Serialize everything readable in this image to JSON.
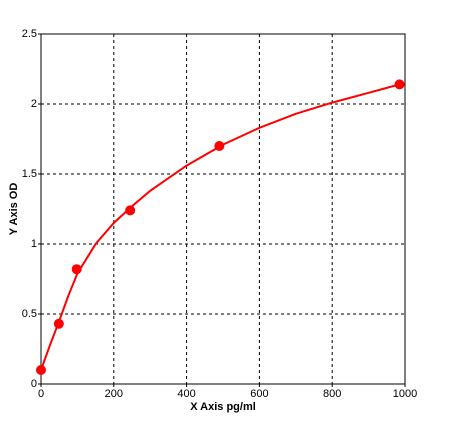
{
  "chart_data": {
    "type": "scatter",
    "x_label": "X Axis pg/ml",
    "y_label": "Y Axis OD",
    "xlim": [
      0,
      1000
    ],
    "xticks": [
      0,
      200,
      400,
      600,
      800,
      1000
    ],
    "ylim": [
      0,
      2.5
    ],
    "yticks": [
      0,
      0.5,
      1,
      1.5,
      2,
      2.5
    ],
    "grid": true,
    "series": [
      {
        "type": "line",
        "color": "#ff0000",
        "x": [
          0,
          25,
          50,
          75,
          100,
          150,
          200,
          250,
          300,
          400,
          500,
          600,
          700,
          800,
          900,
          985
        ],
        "values": [
          0.1,
          0.28,
          0.45,
          0.63,
          0.79,
          1.0,
          1.15,
          1.27,
          1.38,
          1.56,
          1.71,
          1.83,
          1.93,
          2.01,
          2.08,
          2.14
        ]
      },
      {
        "type": "scatter",
        "color": "#ff0000",
        "x": [
          0,
          49,
          98,
          245,
          490,
          985
        ],
        "values": [
          0.1,
          0.43,
          0.82,
          1.24,
          1.7,
          2.14
        ]
      }
    ]
  }
}
